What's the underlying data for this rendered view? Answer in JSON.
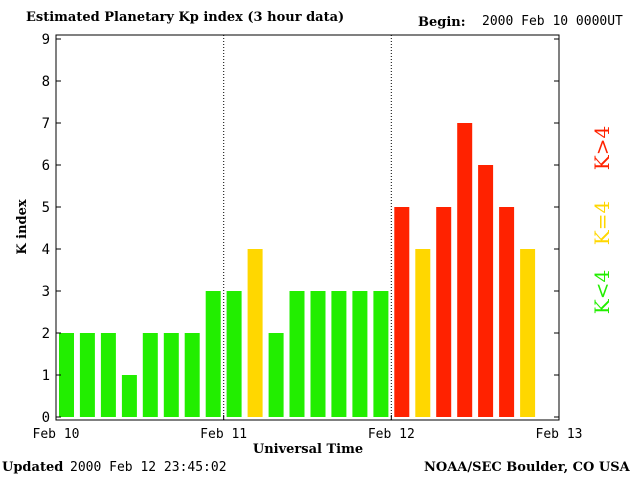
{
  "header": {
    "title": "Estimated Planetary Kp index (3 hour data)",
    "begin_label": "Begin:",
    "begin_value": "2000 Feb 10 0000UT"
  },
  "footer": {
    "updated_label": "Updated",
    "updated_value": "2000 Feb 12 23:45:02",
    "credit": "NOAA/SEC Boulder, CO USA"
  },
  "colors": {
    "low": "#22ee00",
    "equal": "#ffd700",
    "high": "#ff2200"
  },
  "chart_data": {
    "type": "bar",
    "title": "Estimated Planetary Kp index (3 hour data)",
    "xlabel": "Universal Time",
    "ylabel": "K index",
    "ylim": [
      0,
      9
    ],
    "yticks": [
      "0",
      "1",
      "2",
      "3",
      "4",
      "5",
      "6",
      "7",
      "8",
      "9"
    ],
    "xticks": [
      "Feb 10",
      "Feb 11",
      "Feb 12",
      "Feb 13"
    ],
    "bars_per_day": 8,
    "total_slots": 24,
    "values": [
      2,
      2,
      2,
      1,
      2,
      2,
      2,
      3,
      3,
      4,
      2,
      3,
      3,
      3,
      3,
      3,
      5,
      4,
      5,
      7,
      6,
      5,
      4
    ],
    "legend": {
      "low": "K<4",
      "equal": "K=4",
      "high": "K>4"
    },
    "day_separators": "dotted"
  }
}
